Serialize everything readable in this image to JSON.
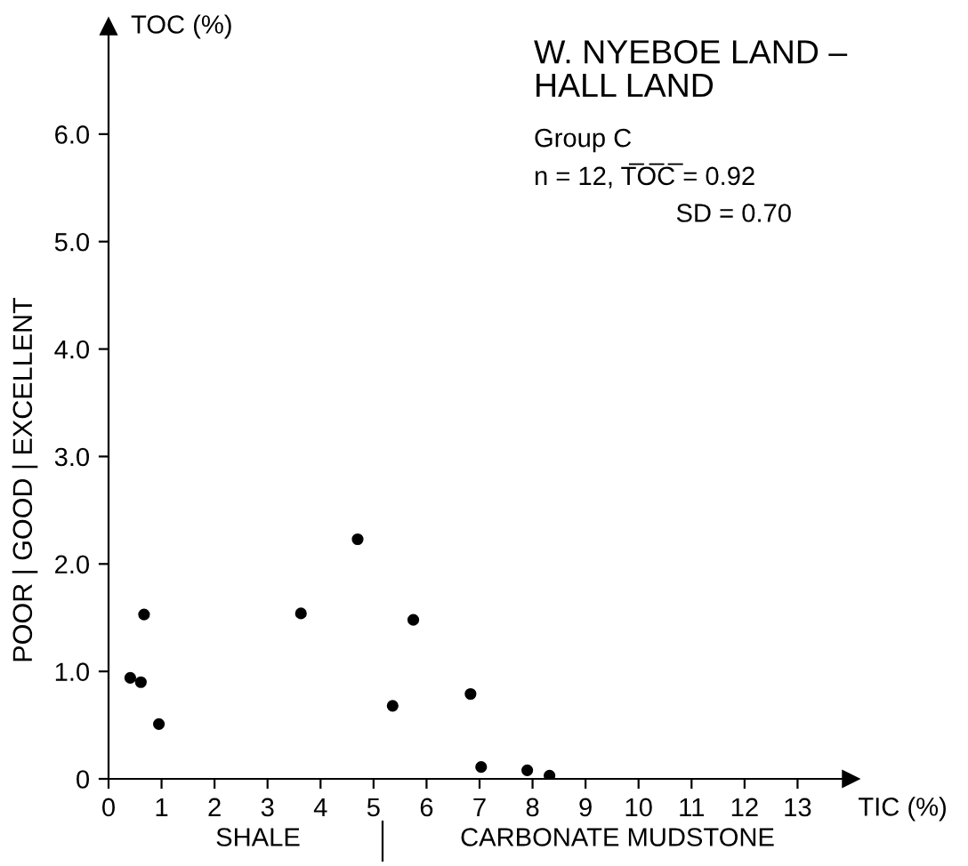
{
  "chart_data": {
    "type": "scatter",
    "title": "W. NYEBOE LAND –\nHALL LAND",
    "subtitle": "Group C",
    "xlabel": "TIC (%)",
    "ylabel": "TOC (%)",
    "annotations": [
      "n = 12, T̅O̅C̅ = 0.92",
      "SD = 0.70",
      "POOR | GOOD | EXCELLENT",
      "SHALE",
      "CARBONATE MUDSTONE"
    ],
    "x": [
      0.41,
      0.61,
      0.67,
      0.95,
      3.63,
      4.7,
      5.75,
      5.36,
      6.83,
      7.03,
      7.9,
      8.32
    ],
    "values": [
      0.94,
      0.9,
      1.53,
      0.51,
      1.54,
      2.23,
      1.48,
      0.68,
      0.79,
      0.11,
      0.08,
      0.03
    ],
    "color": "#000000",
    "marker": "circle",
    "xlim": [
      0,
      14
    ],
    "ylim": [
      0,
      7
    ],
    "xticks": [
      0,
      1,
      2,
      3,
      4,
      5,
      6,
      7,
      8,
      9,
      10,
      11,
      12,
      13
    ],
    "yticks": [
      0,
      {
        "value": 1,
        "label": "1.0"
      },
      {
        "value": 2,
        "label": "2.0"
      },
      {
        "value": 3,
        "label": "3.0"
      },
      {
        "value": 4,
        "label": "4.0"
      },
      {
        "value": 5,
        "label": "5.0"
      },
      {
        "value": 6,
        "label": "6.0"
      }
    ],
    "grid": false,
    "legend": false
  }
}
